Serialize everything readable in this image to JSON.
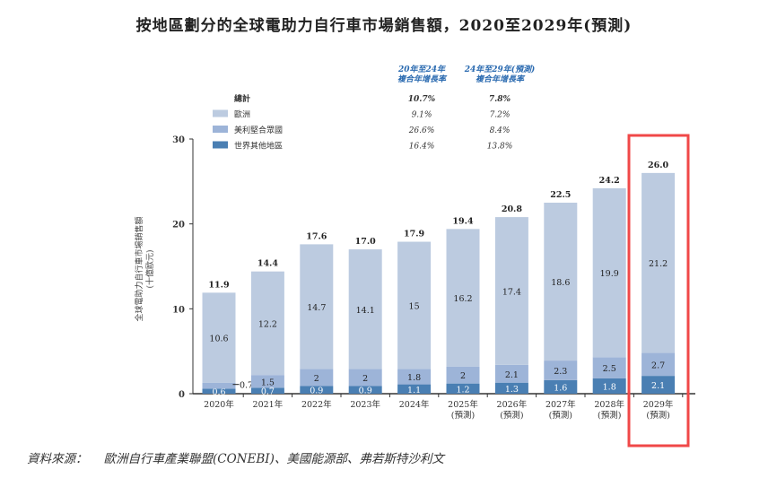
{
  "title": "按地區劃分的全球電助力自行車市場銷售額，2020至2029年(預測)",
  "source": {
    "label": "資料來源：",
    "text": "歐洲自行車產業聯盟(CONEBI)、美國能源部、弗若斯特沙利文"
  },
  "colors": {
    "europe": "#bccbe0",
    "us": "#9db4d8",
    "rest": "#4a7fb3",
    "highlight": "#f04848",
    "cagr_header": "#2a6ab0"
  },
  "chart_data": {
    "type": "bar",
    "stacked": true,
    "ylabel": "全球電助力自行車市場銷售額",
    "ylabel_unit": "(十億歐元)",
    "ylim": [
      0,
      30
    ],
    "yticks": [
      "0",
      "10",
      "20",
      "30"
    ],
    "categories": [
      [
        "2020年"
      ],
      [
        "2021年"
      ],
      [
        "2022年"
      ],
      [
        "2023年"
      ],
      [
        "2024年"
      ],
      [
        "2025年",
        "(預測)"
      ],
      [
        "2026年",
        "(預測)"
      ],
      [
        "2027年",
        "(預測)"
      ],
      [
        "2028年",
        "(預測)"
      ],
      [
        "2029年",
        "(預測)"
      ]
    ],
    "totals": [
      11.9,
      14.4,
      17.6,
      17.0,
      17.9,
      19.4,
      20.8,
      22.5,
      24.2,
      26.0
    ],
    "total_labels": [
      "11.9",
      "14.4",
      "17.6",
      "17.0",
      "17.9",
      "19.4",
      "20.8",
      "22.5",
      "24.2",
      "26.0"
    ],
    "series": [
      {
        "name": "世界其他地區",
        "key": "rest",
        "values": [
          0.6,
          0.7,
          0.9,
          0.9,
          1.1,
          1.2,
          1.3,
          1.6,
          1.8,
          2.1
        ]
      },
      {
        "name": "美利堅合眾國",
        "key": "us",
        "values": [
          0.7,
          1.5,
          2.0,
          2.0,
          1.8,
          2.0,
          2.1,
          2.3,
          2.5,
          2.7
        ]
      },
      {
        "name": "歐洲",
        "key": "europe",
        "values": [
          10.6,
          12.2,
          14.7,
          14.1,
          15.0,
          16.2,
          17.4,
          18.6,
          19.9,
          21.2
        ]
      }
    ],
    "highlighted_category": "2029年",
    "cagr_table": {
      "headers": [
        [
          "20年至24年",
          "複合年增長率"
        ],
        [
          "24年至29年(預測)",
          "複合年增長率"
        ]
      ],
      "rows": [
        {
          "label": "總計",
          "values": [
            "10.7%",
            "7.8%"
          ]
        },
        {
          "label": "歐洲",
          "key": "europe",
          "values": [
            "9.1%",
            "7.2%"
          ]
        },
        {
          "label": "美利堅合眾國",
          "key": "us",
          "values": [
            "26.6%",
            "8.4%"
          ]
        },
        {
          "label": "世界其他地區",
          "key": "rest",
          "values": [
            "16.4%",
            "13.8%"
          ]
        }
      ]
    }
  }
}
